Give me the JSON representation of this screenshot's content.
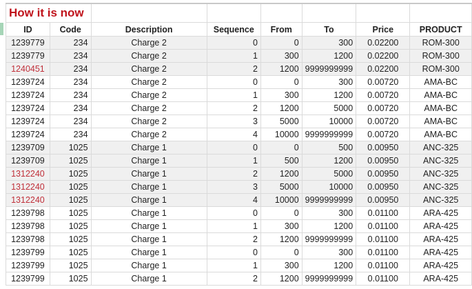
{
  "title": "How it is now",
  "headers": [
    "ID",
    "Code",
    "Description",
    "Sequence",
    "From",
    "To",
    "Price",
    "PRODUCT"
  ],
  "accent_red": "#c0141c",
  "rows": [
    {
      "id": "1239779",
      "code": "234",
      "desc": "Charge 2",
      "seq": "0",
      "from": "0",
      "to": "300",
      "price": "0.02200",
      "product": "ROM-300",
      "shade": true,
      "red": false
    },
    {
      "id": "1239779",
      "code": "234",
      "desc": "Charge 2",
      "seq": "1",
      "from": "300",
      "to": "1200",
      "price": "0.02200",
      "product": "ROM-300",
      "shade": true,
      "red": false
    },
    {
      "id": "1240451",
      "code": "234",
      "desc": "Charge 2",
      "seq": "2",
      "from": "1200",
      "to": "9999999999",
      "price": "0.02200",
      "product": "ROM-300",
      "shade": true,
      "red": true
    },
    {
      "id": "1239724",
      "code": "234",
      "desc": "Charge 2",
      "seq": "0",
      "from": "0",
      "to": "300",
      "price": "0.00720",
      "product": "AMA-BC",
      "shade": false,
      "red": false
    },
    {
      "id": "1239724",
      "code": "234",
      "desc": "Charge 2",
      "seq": "1",
      "from": "300",
      "to": "1200",
      "price": "0.00720",
      "product": "AMA-BC",
      "shade": false,
      "red": false
    },
    {
      "id": "1239724",
      "code": "234",
      "desc": "Charge 2",
      "seq": "2",
      "from": "1200",
      "to": "5000",
      "price": "0.00720",
      "product": "AMA-BC",
      "shade": false,
      "red": false
    },
    {
      "id": "1239724",
      "code": "234",
      "desc": "Charge 2",
      "seq": "3",
      "from": "5000",
      "to": "10000",
      "price": "0.00720",
      "product": "AMA-BC",
      "shade": false,
      "red": false
    },
    {
      "id": "1239724",
      "code": "234",
      "desc": "Charge 2",
      "seq": "4",
      "from": "10000",
      "to": "9999999999",
      "price": "0.00720",
      "product": "AMA-BC",
      "shade": false,
      "red": false
    },
    {
      "id": "1239709",
      "code": "1025",
      "desc": "Charge 1",
      "seq": "0",
      "from": "0",
      "to": "500",
      "price": "0.00950",
      "product": "ANC-325",
      "shade": true,
      "red": false
    },
    {
      "id": "1239709",
      "code": "1025",
      "desc": "Charge 1",
      "seq": "1",
      "from": "500",
      "to": "1200",
      "price": "0.00950",
      "product": "ANC-325",
      "shade": true,
      "red": false
    },
    {
      "id": "1312240",
      "code": "1025",
      "desc": "Charge 1",
      "seq": "2",
      "from": "1200",
      "to": "5000",
      "price": "0.00950",
      "product": "ANC-325",
      "shade": true,
      "red": true
    },
    {
      "id": "1312240",
      "code": "1025",
      "desc": "Charge 1",
      "seq": "3",
      "from": "5000",
      "to": "10000",
      "price": "0.00950",
      "product": "ANC-325",
      "shade": true,
      "red": true
    },
    {
      "id": "1312240",
      "code": "1025",
      "desc": "Charge 1",
      "seq": "4",
      "from": "10000",
      "to": "9999999999",
      "price": "0.00950",
      "product": "ANC-325",
      "shade": true,
      "red": true
    },
    {
      "id": "1239798",
      "code": "1025",
      "desc": "Charge 1",
      "seq": "0",
      "from": "0",
      "to": "300",
      "price": "0.01100",
      "product": "ARA-425",
      "shade": false,
      "red": false
    },
    {
      "id": "1239798",
      "code": "1025",
      "desc": "Charge 1",
      "seq": "1",
      "from": "300",
      "to": "1200",
      "price": "0.01100",
      "product": "ARA-425",
      "shade": false,
      "red": false
    },
    {
      "id": "1239798",
      "code": "1025",
      "desc": "Charge 1",
      "seq": "2",
      "from": "1200",
      "to": "9999999999",
      "price": "0.01100",
      "product": "ARA-425",
      "shade": false,
      "red": false
    },
    {
      "id": "1239799",
      "code": "1025",
      "desc": "Charge 1",
      "seq": "0",
      "from": "0",
      "to": "300",
      "price": "0.01100",
      "product": "ARA-425",
      "shade": false,
      "red": false
    },
    {
      "id": "1239799",
      "code": "1025",
      "desc": "Charge 1",
      "seq": "1",
      "from": "300",
      "to": "1200",
      "price": "0.01100",
      "product": "ARA-425",
      "shade": false,
      "red": false
    },
    {
      "id": "1239799",
      "code": "1025",
      "desc": "Charge 1",
      "seq": "2",
      "from": "1200",
      "to": "9999999999",
      "price": "0.01100",
      "product": "ARA-425",
      "shade": false,
      "red": false
    }
  ]
}
